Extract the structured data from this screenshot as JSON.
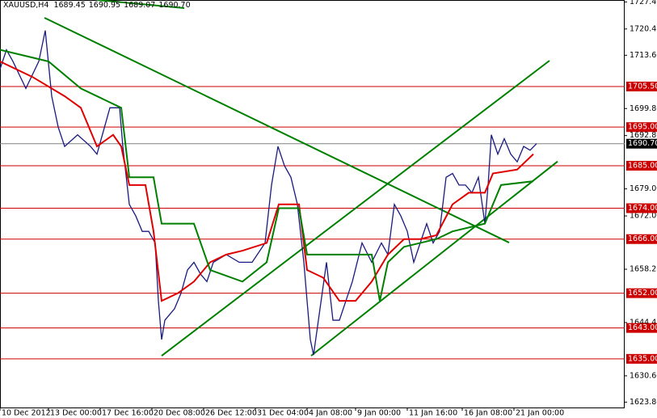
{
  "chart_data": {
    "type": "line",
    "title": "XAUUSD,H4",
    "ohlc": [
      1689.45,
      1690.95,
      1689.07,
      {
        "value": 1690.7,
        "label": "1690.70"
      }
    ],
    "xlim": [
      0,
      193.25
    ],
    "ylim": [
      1622.2,
      1727.9
    ],
    "xticks": [
      {
        "value": 0,
        "label": "10 Dec 2012"
      },
      {
        "value": 15,
        "label": "13 Dec 00:00"
      },
      {
        "value": 31,
        "label": "17 Dec 16:00"
      },
      {
        "value": 47,
        "label": "20 Dec 08:00"
      },
      {
        "value": 63,
        "label": "26 Dec 12:00"
      },
      {
        "value": 79,
        "label": "31 Dec 04:00"
      },
      {
        "value": 95,
        "label": "4 Jan 08:00"
      },
      {
        "value": 110,
        "label": "9 Jan 00:00"
      },
      {
        "value": 126,
        "label": "11 Jan 16:00"
      },
      {
        "value": 143,
        "label": "16 Jan 08:00"
      },
      {
        "value": 159,
        "label": "21 Jan 00:00"
      }
    ],
    "yticks": [
      {
        "value": 1727.4,
        "label": "1727.40"
      },
      {
        "value": 1720.4,
        "label": "1720.40"
      },
      {
        "value": 1713.6,
        "label": "1713.60"
      },
      {
        "value": 1699.8,
        "label": "1699.80"
      },
      {
        "value": 1692.8,
        "label": "1692.80"
      },
      {
        "value": 1679,
        "label": "1679.00"
      },
      {
        "value": 1672,
        "label": "1672.00"
      },
      {
        "value": 1658.2,
        "label": "1658.20"
      },
      {
        "value": 1644.4,
        "label": "1644.40"
      },
      {
        "value": 1630.6,
        "label": "1630.60"
      },
      {
        "value": 1623.8,
        "label": "1623.80"
      }
    ],
    "levels": [
      {
        "value": 1705.5,
        "label": "1705.50"
      },
      {
        "value": 1695,
        "label": "1695.00"
      },
      {
        "value": 1685,
        "label": "1685.00"
      },
      {
        "value": 1674,
        "label": "1674.00"
      },
      {
        "value": 1666,
        "label": "1666.00"
      },
      {
        "value": 1652,
        "label": "1652.00"
      },
      {
        "value": 1643,
        "label": "1643.00"
      },
      {
        "value": 1635,
        "label": "1635.00"
      }
    ],
    "level_color": "#cc0000",
    "current": {
      "value": 1690.7,
      "label": "1690.70"
    },
    "current_color": "#808080",
    "series": [
      {
        "color": "#1a1a80",
        "x": [
          0,
          2,
          4,
          8,
          12,
          14,
          16,
          18,
          20,
          24,
          28,
          30,
          34,
          37,
          38,
          40,
          42,
          44,
          46,
          48,
          49,
          50,
          51,
          54,
          56,
          58,
          60,
          62,
          64,
          66,
          70,
          74,
          78,
          82,
          84,
          86,
          88,
          90,
          92,
          94,
          96,
          97,
          99,
          101,
          103,
          105,
          107,
          109,
          112,
          115,
          118,
          120,
          122,
          124,
          126,
          128,
          130,
          132,
          134,
          136,
          138,
          140,
          142,
          144,
          146,
          148,
          150,
          151,
          152,
          154,
          156,
          158,
          160,
          162,
          164,
          166
        ],
        "values": [
          1710,
          1715,
          1712,
          1705,
          1712,
          1720,
          1703,
          1695,
          1690,
          1693,
          1690,
          1688,
          1700,
          1700,
          1690,
          1675,
          1672,
          1668,
          1668,
          1665,
          1650,
          1640,
          1645,
          1648,
          1652,
          1658,
          1660,
          1657,
          1655,
          1660,
          1662,
          1660,
          1660,
          1665,
          1680,
          1690,
          1685,
          1682,
          1675,
          1660,
          1640,
          1636,
          1648,
          1660,
          1645,
          1645,
          1650,
          1655,
          1665,
          1660,
          1665,
          1662,
          1675,
          1672,
          1668,
          1660,
          1665,
          1670,
          1665,
          1668,
          1682,
          1683,
          1680,
          1680,
          1678,
          1682,
          1670,
          1680,
          1693,
          1688,
          1692,
          1688,
          1686,
          1690,
          1689,
          1690.7
        ]
      },
      {
        "color": "#e00000",
        "x": [
          0,
          10,
          20,
          25,
          30,
          35,
          37.5,
          40,
          45,
          47.5,
          50,
          55,
          60,
          65,
          70,
          75,
          82.5,
          86.25,
          92.5,
          95,
          100,
          105,
          110,
          115,
          120,
          125,
          130,
          135,
          140,
          145,
          150,
          152.5,
          160,
          165
        ],
        "values": [
          1712,
          1708,
          1703,
          1700,
          1690,
          1693,
          1690,
          1680,
          1680,
          1668,
          1650,
          1652,
          1655,
          1660,
          1662,
          1663,
          1665,
          1675,
          1675,
          1658,
          1656,
          1650,
          1650,
          1655,
          1662,
          1666,
          1666,
          1667,
          1675,
          1678,
          1678,
          1683,
          1684,
          1688
        ]
      },
      {
        "color": "#008000",
        "x": [
          0,
          15,
          25,
          37.5,
          40,
          47.5,
          50,
          60,
          65,
          75,
          82.5,
          86.25,
          92.5,
          95,
          105,
          115,
          117.5,
          120,
          125,
          135,
          140,
          150,
          155,
          165
        ],
        "values": [
          1715,
          1712,
          1705,
          1700,
          1682,
          1682,
          1670,
          1670,
          1658,
          1655,
          1660,
          1674,
          1674,
          1662,
          1662,
          1662,
          1650,
          1660,
          1664,
          1666,
          1668,
          1670,
          1680,
          1681
        ]
      }
    ],
    "trendlines": [
      {
        "x": [
          13.75,
          157.5
        ],
        "y": [
          1723.3,
          1665.1
        ]
      },
      {
        "x": [
          50,
          170
        ],
        "y": [
          1635.8,
          1712.2
        ]
      },
      {
        "x": [
          96.25,
          172.5
        ],
        "y": [
          1635.8,
          1686.1
        ]
      },
      {
        "x": [
          30,
          57
        ],
        "y": [
          1727.9,
          1725.8
        ]
      }
    ],
    "trend_color": "#008000"
  }
}
